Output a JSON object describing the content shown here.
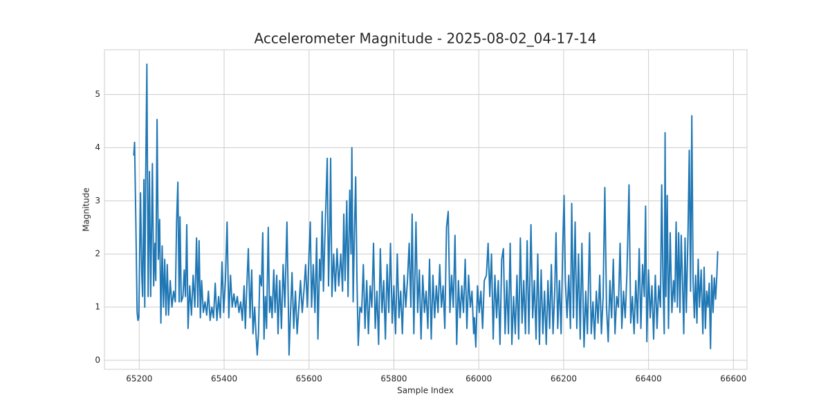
{
  "chart_data": {
    "type": "line",
    "title": "Accelerometer Magnitude - 2025-08-02_04-17-14",
    "xlabel": "Sample Index",
    "ylabel": "Magnitude",
    "grid": true,
    "xlim": [
      65118,
      66632
    ],
    "ylim": [
      -0.17,
      5.84
    ],
    "xticks": [
      65200,
      65400,
      65600,
      65800,
      66000,
      66200,
      66400,
      66600
    ],
    "yticks": [
      0,
      1,
      2,
      3,
      4,
      5
    ],
    "series": [
      {
        "color": "#1f77b4",
        "x": [
          65187,
          65189,
          65192,
          65195,
          65197,
          65199,
          65203,
          65206,
          65208,
          65211,
          65213,
          65215,
          65218,
          65221,
          65224,
          65227,
          65231,
          65234,
          65237,
          65239,
          65242,
          65245,
          65248,
          65251,
          65254,
          65257,
          65260,
          65263,
          65266,
          65269,
          65273,
          65277,
          65281,
          65285,
          65288,
          65291,
          65294,
          65296,
          65299,
          65303,
          65306,
          65309,
          65312,
          65315,
          65319,
          65323,
          65327,
          65331,
          65335,
          65338,
          65341,
          65344,
          65347,
          65351,
          65355,
          65359,
          65363,
          65367,
          65371,
          65375,
          65379,
          65383,
          65387,
          65391,
          65395,
          65399,
          65403,
          65407,
          65411,
          65415,
          65419,
          65423,
          65427,
          65431,
          65435,
          65439,
          65443,
          65447,
          65450,
          65453,
          65457,
          65461,
          65465,
          65468,
          65472,
          65475,
          65478,
          65481,
          65484,
          65488,
          65491,
          65494,
          65497,
          65500,
          65504,
          65507,
          65510,
          65513,
          65517,
          65520,
          65524,
          65527,
          65531,
          65535,
          65539,
          65543,
          65548,
          65551,
          65553,
          65556,
          65560,
          65564,
          65568,
          65572,
          65576,
          65580,
          65584,
          65588,
          65592,
          65596,
          65600,
          65603,
          65606,
          65610,
          65614,
          65618,
          65621,
          65625,
          65628,
          65631,
          65634,
          65637,
          65640,
          65643,
          65646,
          65649,
          65651,
          65654,
          65658,
          65662,
          65666,
          65670,
          65675,
          65679,
          65682,
          65685,
          65689,
          65692,
          65696,
          65699,
          65701,
          65704,
          65707,
          65710,
          65713,
          65716,
          65720,
          65724,
          65728,
          65732,
          65736,
          65740,
          65744,
          65748,
          65752,
          65756,
          65760,
          65764,
          65768,
          65772,
          65776,
          65780,
          65784,
          65788,
          65792,
          65796,
          65800,
          65804,
          65808,
          65812,
          65816,
          65820,
          65824,
          65828,
          65832,
          65836,
          65840,
          65843,
          65847,
          65852,
          65856,
          65860,
          65864,
          65868,
          65872,
          65876,
          65880,
          65884,
          65888,
          65892,
          65896,
          65900,
          65904,
          65908,
          65912,
          65916,
          65920,
          65924,
          65928,
          65932,
          65936,
          65940,
          65944,
          65948,
          65952,
          65956,
          65960,
          65964,
          65968,
          65972,
          65976,
          65980,
          65984,
          65988,
          65990,
          65993,
          65997,
          66001,
          66005,
          66009,
          66013,
          66018,
          66022,
          66026,
          66030,
          66034,
          66038,
          66042,
          66046,
          66050,
          66054,
          66058,
          66062,
          66066,
          66070,
          66074,
          66078,
          66082,
          66086,
          66090,
          66094,
          66098,
          66102,
          66106,
          66110,
          66114,
          66118,
          66123,
          66127,
          66131,
          66135,
          66139,
          66143,
          66147,
          66151,
          66155,
          66159,
          66163,
          66167,
          66171,
          66175,
          66179,
          66182,
          66186,
          66190,
          66194,
          66198,
          66201,
          66204,
          66208,
          66212,
          66216,
          66219,
          66223,
          66227,
          66231,
          66235,
          66239,
          66243,
          66248,
          66252,
          66256,
          66261,
          66265,
          66269,
          66273,
          66277,
          66281,
          66285,
          66289,
          66293,
          66297,
          66301,
          66305,
          66309,
          66313,
          66317,
          66321,
          66325,
          66329,
          66333,
          66337,
          66341,
          66345,
          66349,
          66354,
          66358,
          66362,
          66366,
          66370,
          66374,
          66378,
          66382,
          66386,
          66390,
          66393,
          66396,
          66400,
          66404,
          66408,
          66412,
          66416,
          66420,
          66424,
          66428,
          66431,
          66434,
          66437,
          66439,
          66441,
          66444,
          66447,
          66451,
          66455,
          66459,
          66462,
          66465,
          66468,
          66471,
          66474,
          66477,
          66480,
          66483,
          66486,
          66489,
          66493,
          66496,
          66499,
          66502,
          66505,
          66508,
          66511,
          66514,
          66517,
          66520,
          66524,
          66528,
          66531,
          66534,
          66537,
          66540,
          66543,
          66546,
          66549,
          66552,
          66555,
          66558,
          66561,
          66563
        ],
        "values": [
          3.85,
          4.1,
          2.6,
          0.9,
          0.75,
          0.8,
          3.15,
          1.6,
          1.2,
          3.4,
          1.0,
          3.3,
          5.57,
          1.2,
          3.55,
          1.2,
          3.7,
          1.4,
          2.2,
          1.5,
          4.53,
          1.9,
          2.65,
          0.7,
          2.15,
          1.0,
          1.9,
          0.85,
          1.8,
          0.85,
          1.5,
          1.0,
          1.3,
          1.1,
          2.6,
          3.35,
          1.1,
          2.7,
          1.1,
          1.2,
          1.7,
          1.2,
          2.55,
          0.6,
          1.4,
          0.85,
          1.6,
          1.0,
          2.3,
          1.0,
          2.25,
          0.8,
          1.5,
          0.9,
          1.1,
          0.85,
          1.3,
          0.75,
          1.0,
          0.8,
          1.45,
          0.75,
          1.2,
          0.8,
          1.85,
          0.9,
          1.5,
          2.6,
          0.8,
          1.6,
          1.0,
          1.25,
          1.0,
          1.2,
          0.9,
          1.1,
          0.75,
          1.4,
          0.6,
          1.3,
          2.1,
          0.8,
          1.7,
          0.5,
          1.0,
          0.5,
          0.1,
          0.5,
          1.6,
          1.4,
          2.4,
          0.4,
          1.2,
          0.6,
          2.5,
          0.9,
          1.2,
          0.8,
          1.7,
          0.9,
          1.6,
          0.5,
          1.5,
          0.6,
          1.8,
          1.0,
          2.6,
          1.2,
          0.1,
          0.8,
          1.65,
          0.6,
          1.3,
          0.5,
          1.0,
          1.5,
          0.9,
          1.3,
          1.8,
          1.0,
          2.0,
          2.6,
          1.0,
          1.8,
          0.9,
          2.3,
          0.4,
          1.9,
          1.5,
          2.8,
          1.3,
          2.2,
          3.0,
          3.8,
          1.4,
          2.5,
          3.8,
          1.2,
          2.0,
          1.3,
          2.1,
          1.4,
          2.0,
          1.3,
          2.75,
          1.5,
          3.0,
          1.2,
          3.2,
          2.0,
          4.0,
          1.1,
          2.4,
          3.45,
          1.5,
          0.28,
          1.0,
          0.9,
          1.8,
          0.6,
          1.5,
          0.5,
          1.4,
          1.0,
          2.2,
          0.6,
          1.3,
          0.3,
          2.1,
          0.9,
          1.5,
          0.4,
          1.8,
          0.9,
          2.2,
          0.7,
          1.4,
          0.5,
          2.0,
          0.8,
          1.3,
          0.5,
          1.6,
          1.0,
          1.5,
          2.2,
          1.0,
          2.75,
          0.5,
          2.6,
          0.9,
          1.7,
          0.4,
          1.6,
          0.9,
          1.3,
          0.6,
          1.9,
          0.4,
          1.6,
          0.8,
          1.4,
          0.9,
          1.8,
          1.0,
          1.4,
          0.6,
          2.5,
          2.8,
          0.9,
          1.6,
          1.0,
          2.35,
          0.3,
          1.5,
          0.8,
          1.4,
          0.9,
          1.9,
          0.6,
          1.6,
          1.0,
          1.3,
          0.5,
          0.8,
          0.25,
          1.4,
          0.9,
          1.3,
          0.6,
          1.5,
          1.6,
          2.2,
          1.2,
          2.0,
          0.4,
          1.6,
          0.8,
          1.5,
          0.3,
          1.9,
          2.1,
          0.5,
          1.5,
          0.5,
          2.2,
          0.3,
          1.2,
          0.5,
          1.6,
          0.4,
          2.3,
          0.7,
          1.5,
          0.5,
          2.25,
          0.5,
          2.55,
          0.8,
          1.5,
          0.4,
          2.0,
          0.3,
          1.7,
          0.5,
          1.3,
          0.3,
          1.5,
          0.6,
          1.8,
          0.5,
          1.3,
          2.4,
          0.6,
          1.5,
          0.5,
          2.2,
          3.1,
          1.5,
          0.8,
          1.6,
          0.6,
          2.95,
          0.8,
          2.6,
          0.6,
          2.0,
          0.4,
          2.2,
          0.25,
          1.3,
          0.5,
          2.4,
          0.5,
          1.1,
          0.4,
          1.3,
          0.7,
          1.6,
          0.5,
          1.2,
          3.25,
          1.0,
          0.35,
          1.5,
          0.8,
          1.9,
          0.5,
          1.2,
          1.0,
          2.2,
          0.6,
          1.3,
          0.8,
          1.6,
          3.3,
          0.7,
          1.2,
          0.5,
          1.5,
          0.7,
          2.1,
          0.6,
          1.8,
          1.2,
          2.9,
          0.35,
          1.7,
          0.8,
          1.4,
          0.4,
          1.6,
          0.6,
          1.4,
          1.0,
          3.3,
          1.5,
          0.5,
          4.28,
          1.2,
          3.1,
          0.6,
          2.4,
          0.9,
          1.5,
          1.1,
          2.6,
          1.0,
          2.4,
          0.9,
          2.35,
          1.5,
          0.5,
          2.3,
          0.9,
          2.4,
          3.95,
          1.3,
          4.6,
          1.5,
          0.8,
          1.6,
          0.7,
          1.9,
          1.0,
          1.7,
          0.5,
          1.75,
          0.6,
          1.3,
          1.0,
          1.45,
          0.22,
          1.6,
          0.9,
          1.55,
          1.15,
          1.6,
          2.05
        ]
      }
    ]
  }
}
